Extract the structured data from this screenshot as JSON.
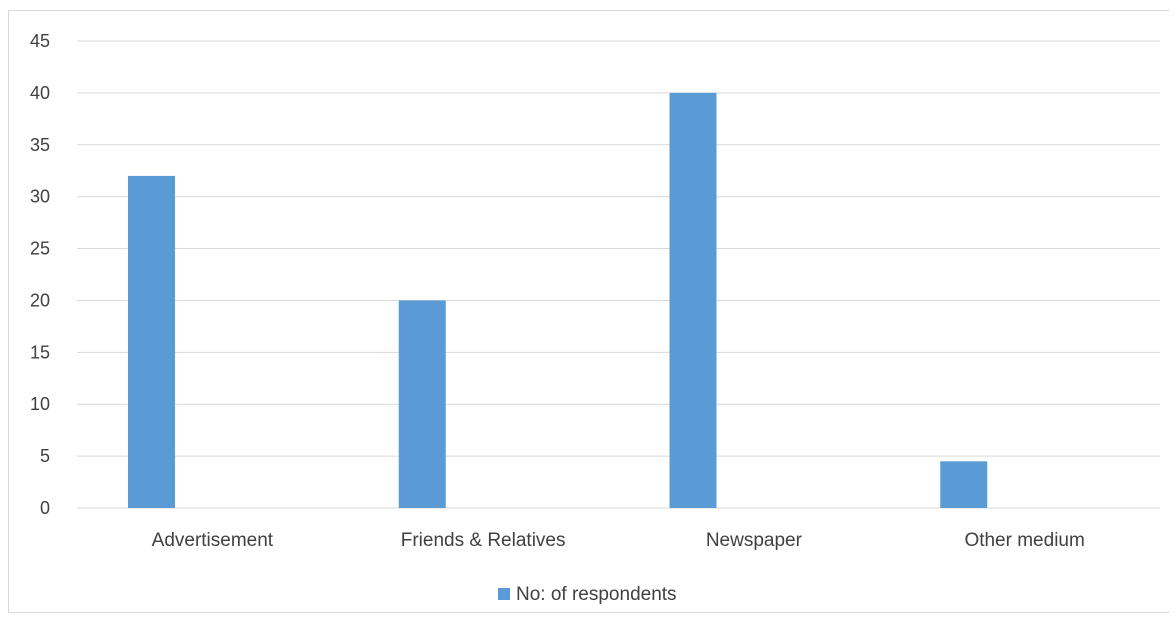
{
  "chart_data": {
    "type": "bar",
    "categories": [
      "Advertisement",
      "Friends & Relatives",
      "Newspaper",
      "Other medium"
    ],
    "series": [
      {
        "name": "No: of respondents",
        "values": [
          32,
          20,
          40,
          4.5
        ],
        "color": "#5b9bd5"
      }
    ],
    "yticks": [
      "0",
      "5",
      "10",
      "15",
      "20",
      "25",
      "30",
      "35",
      "40",
      "45"
    ],
    "ylim": [
      0,
      45
    ],
    "grid": true,
    "legend_position": "bottom"
  }
}
